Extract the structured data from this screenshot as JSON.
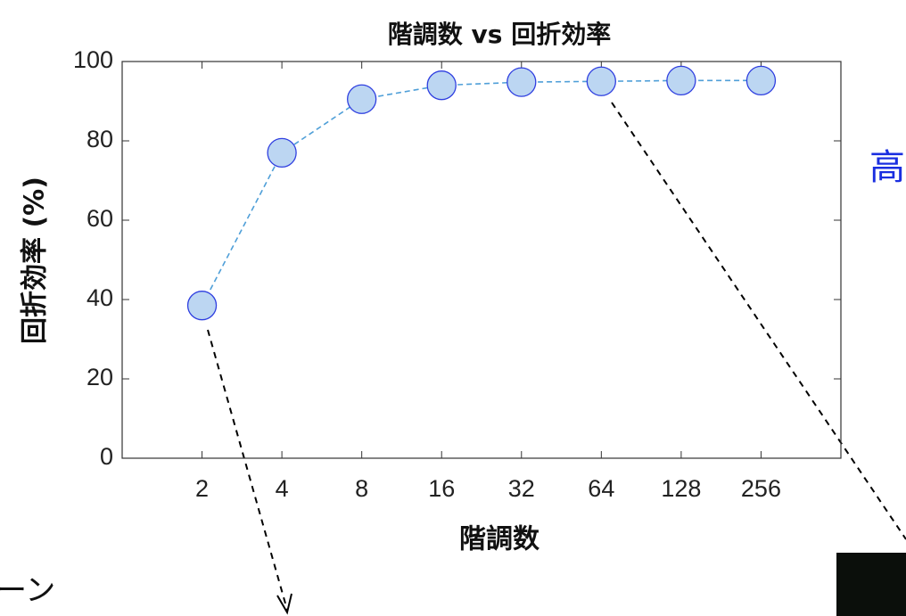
{
  "chart_data": {
    "type": "line",
    "title": "階調数 vs 回折効率",
    "x_label": "階調数",
    "y_label": "回折効率 (%)",
    "categories": [
      "2",
      "4",
      "8",
      "16",
      "32",
      "64",
      "128",
      "256"
    ],
    "series": [
      {
        "name": "回折効率",
        "color": "#4f9fd8",
        "marker_fill": "#bcd6f2",
        "marker_edge": "#2f3fe0",
        "values": [
          38.5,
          77,
          90.5,
          94,
          94.8,
          95,
          95.2,
          95.2
        ]
      }
    ],
    "ylim": [
      0,
      100
    ],
    "yticks": [
      0,
      20,
      40,
      60,
      80,
      100
    ],
    "grid": false
  },
  "side_texts": [
    "高",
    "ーン"
  ]
}
